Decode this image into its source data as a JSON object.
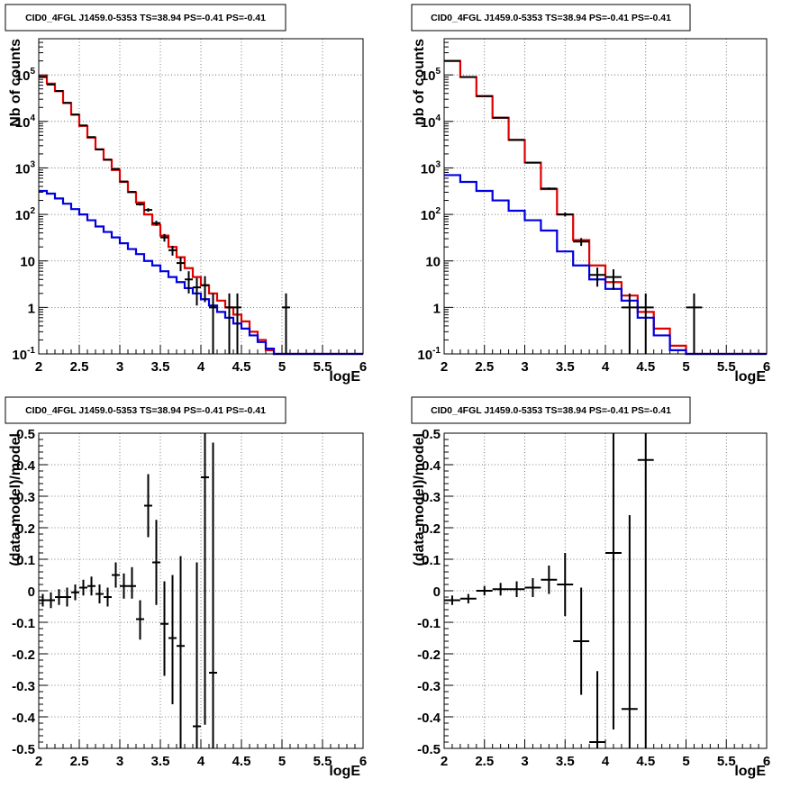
{
  "chart_data": [
    {
      "type": "line",
      "title": "CID0_4FGL J1459.0-5353 TS=38.94 PS=-0.41 PS=-0.41",
      "xlabel": "logE",
      "ylabel": "Nb of counts",
      "xlim": [
        2,
        6
      ],
      "ylim": [
        0.1,
        600000
      ],
      "yscale": "log",
      "grid": true,
      "x_ticks": [
        "2",
        "2.5",
        "3",
        "3.5",
        "4",
        "4.5",
        "5",
        "5.5",
        "6"
      ],
      "y_ticks": [
        "10^-1",
        "1",
        "10",
        "10^2",
        "10^3",
        "10^4",
        "10^5"
      ],
      "bin_edges": [
        2.0,
        2.1,
        2.2,
        2.3,
        2.4,
        2.5,
        2.6,
        2.7,
        2.8,
        2.9,
        3.0,
        3.1,
        3.2,
        3.3,
        3.4,
        3.5,
        3.6,
        3.7,
        3.8,
        3.9,
        4.0,
        4.1,
        4.2,
        4.3,
        4.4,
        4.5,
        4.6,
        4.7,
        4.8,
        4.9,
        5.0,
        5.1,
        5.2,
        5.3,
        5.4,
        5.5,
        5.6,
        5.7,
        5.8,
        5.9,
        6.0
      ],
      "series": [
        {
          "color": "#e00000",
          "style": "step",
          "values": [
            95000,
            65000,
            45000,
            25000,
            14000,
            8000,
            4500,
            2500,
            1500,
            900,
            500,
            300,
            180,
            100,
            60,
            35,
            20,
            12,
            7,
            4.5,
            3,
            2,
            1.4,
            1,
            0.7,
            0.5,
            0.3,
            0.2,
            0.12,
            0.1,
            0.1,
            0.1,
            0.1,
            0.1,
            0.1,
            0.1,
            0.1,
            0.1,
            0.1,
            0.1
          ]
        },
        {
          "color": "#0000e0",
          "style": "step",
          "values": [
            320,
            280,
            220,
            170,
            130,
            100,
            75,
            55,
            42,
            32,
            24,
            18,
            14,
            10,
            8,
            6,
            4.5,
            3.5,
            2.6,
            2,
            1.5,
            1.1,
            0.8,
            0.6,
            0.45,
            0.35,
            0.25,
            0.18,
            0.13,
            0.1,
            0.1,
            0.1,
            0.1,
            0.1,
            0.1,
            0.1,
            0.1,
            0.1,
            0.1,
            0.1
          ]
        }
      ],
      "data_points": [
        {
          "x": 2.05,
          "y": 90000,
          "ylo": 89400,
          "yhi": 90600
        },
        {
          "x": 2.15,
          "y": 62000,
          "ylo": 61500,
          "yhi": 62500
        },
        {
          "x": 2.25,
          "y": 45000,
          "ylo": 44500,
          "yhi": 45500
        },
        {
          "x": 2.35,
          "y": 25000,
          "ylo": 24700,
          "yhi": 25300
        },
        {
          "x": 2.45,
          "y": 14000,
          "ylo": 13800,
          "yhi": 14200
        },
        {
          "x": 2.55,
          "y": 8200,
          "ylo": 8050,
          "yhi": 8350
        },
        {
          "x": 2.65,
          "y": 4600,
          "ylo": 4500,
          "yhi": 4700
        },
        {
          "x": 2.75,
          "y": 2500,
          "ylo": 2450,
          "yhi": 2550
        },
        {
          "x": 2.85,
          "y": 1500,
          "ylo": 1460,
          "yhi": 1540
        },
        {
          "x": 2.95,
          "y": 950,
          "ylo": 920,
          "yhi": 980
        },
        {
          "x": 3.05,
          "y": 510,
          "ylo": 490,
          "yhi": 530
        },
        {
          "x": 3.15,
          "y": 305,
          "ylo": 290,
          "yhi": 320
        },
        {
          "x": 3.25,
          "y": 165,
          "ylo": 155,
          "yhi": 175
        },
        {
          "x": 3.35,
          "y": 125,
          "ylo": 114,
          "yhi": 136
        },
        {
          "x": 3.45,
          "y": 65,
          "ylo": 57,
          "yhi": 73
        },
        {
          "x": 3.55,
          "y": 32,
          "ylo": 26,
          "yhi": 38
        },
        {
          "x": 3.65,
          "y": 17,
          "ylo": 13,
          "yhi": 21
        },
        {
          "x": 3.75,
          "y": 9,
          "ylo": 6,
          "yhi": 12
        },
        {
          "x": 3.85,
          "y": 4,
          "ylo": 2,
          "yhi": 6
        },
        {
          "x": 3.95,
          "y": 2.7,
          "ylo": 1.1,
          "yhi": 4.3
        },
        {
          "x": 4.05,
          "y": 3,
          "ylo": 1.3,
          "yhi": 4.7
        },
        {
          "x": 4.15,
          "y": 1,
          "ylo": 0.1,
          "yhi": 2
        },
        {
          "x": 4.35,
          "y": 1,
          "ylo": 0.1,
          "yhi": 2
        },
        {
          "x": 4.45,
          "y": 1,
          "ylo": 0.1,
          "yhi": 2
        },
        {
          "x": 5.05,
          "y": 1,
          "ylo": 0.1,
          "yhi": 2
        }
      ]
    },
    {
      "type": "line",
      "title": "CID0_4FGL J1459.0-5353 TS=38.94 PS=-0.41 PS=-0.41",
      "xlabel": "logE",
      "ylabel": "nb of counts",
      "xlim": [
        2,
        6
      ],
      "ylim": [
        0.1,
        600000
      ],
      "yscale": "log",
      "grid": true,
      "x_ticks": [
        "2",
        "2.5",
        "3",
        "3.5",
        "4",
        "4.5",
        "5",
        "5.5",
        "6"
      ],
      "y_ticks": [
        "10^-1",
        "1",
        "10",
        "10^2",
        "10^3",
        "10^4",
        "10^5"
      ],
      "bin_edges": [
        2.0,
        2.2,
        2.4,
        2.6,
        2.8,
        3.0,
        3.2,
        3.4,
        3.6,
        3.8,
        4.0,
        4.2,
        4.4,
        4.6,
        4.8,
        5.0,
        5.2,
        5.4,
        5.6,
        5.8,
        6.0
      ],
      "series": [
        {
          "color": "#e00000",
          "style": "step",
          "values": [
            200000,
            90000,
            35000,
            12000,
            4000,
            1300,
            350,
            100,
            28,
            8,
            3.5,
            1.8,
            0.8,
            0.35,
            0.15,
            0.1,
            0.1,
            0.1,
            0.1,
            0.1
          ]
        },
        {
          "color": "#0000e0",
          "style": "step",
          "values": [
            700,
            500,
            320,
            200,
            120,
            75,
            45,
            16,
            8,
            4,
            2.5,
            1.4,
            0.6,
            0.25,
            0.12,
            0.1,
            0.1,
            0.1,
            0.1,
            0.1
          ]
        }
      ],
      "data_points": [
        {
          "x": 2.1,
          "y": 200000,
          "ylo": 199500,
          "yhi": 200500
        },
        {
          "x": 2.3,
          "y": 90000,
          "ylo": 89700,
          "yhi": 90300
        },
        {
          "x": 2.5,
          "y": 35000,
          "ylo": 34800,
          "yhi": 35200
        },
        {
          "x": 2.7,
          "y": 12000,
          "ylo": 11890,
          "yhi": 12110
        },
        {
          "x": 2.9,
          "y": 4000,
          "ylo": 3937,
          "yhi": 4063
        },
        {
          "x": 3.1,
          "y": 1300,
          "ylo": 1264,
          "yhi": 1336
        },
        {
          "x": 3.3,
          "y": 360,
          "ylo": 341,
          "yhi": 379
        },
        {
          "x": 3.5,
          "y": 100,
          "ylo": 90,
          "yhi": 110
        },
        {
          "x": 3.7,
          "y": 26,
          "ylo": 21,
          "yhi": 31
        },
        {
          "x": 3.9,
          "y": 5,
          "ylo": 2.8,
          "yhi": 7.2
        },
        {
          "x": 4.1,
          "y": 4.5,
          "ylo": 2.4,
          "yhi": 6.6
        },
        {
          "x": 4.3,
          "y": 1,
          "ylo": 0.1,
          "yhi": 2
        },
        {
          "x": 4.5,
          "y": 1,
          "ylo": 0.1,
          "yhi": 2
        },
        {
          "x": 5.1,
          "y": 1,
          "ylo": 0.1,
          "yhi": 2
        }
      ]
    },
    {
      "type": "scatter",
      "title": "CID0_4FGL J1459.0-5353 TS=38.94 PS=-0.41 PS=-0.41",
      "xlabel": "logE",
      "ylabel": "(data-model)/model",
      "xlim": [
        2,
        6
      ],
      "ylim": [
        -0.5,
        0.5
      ],
      "yscale": "linear",
      "grid": true,
      "x_ticks": [
        "2",
        "2.5",
        "3",
        "3.5",
        "4",
        "4.5",
        "5",
        "5.5",
        "6"
      ],
      "y_ticks": [
        "-0.5",
        "-0.4",
        "-0.3",
        "-0.2",
        "-0.1",
        "0",
        "0.1",
        "0.2",
        "0.3",
        "0.4",
        "0.5"
      ],
      "x_half_width": 0.05,
      "data_points": [
        {
          "x": 2.05,
          "y": -0.03,
          "ylo": -0.05,
          "yhi": -0.01
        },
        {
          "x": 2.15,
          "y": -0.03,
          "ylo": -0.055,
          "yhi": -0.005
        },
        {
          "x": 2.25,
          "y": -0.02,
          "ylo": -0.045,
          "yhi": 0.005
        },
        {
          "x": 2.35,
          "y": -0.02,
          "ylo": -0.05,
          "yhi": 0.01
        },
        {
          "x": 2.45,
          "y": -0.005,
          "ylo": -0.03,
          "yhi": 0.02
        },
        {
          "x": 2.55,
          "y": 0.01,
          "ylo": -0.015,
          "yhi": 0.035
        },
        {
          "x": 2.65,
          "y": 0.015,
          "ylo": -0.015,
          "yhi": 0.045
        },
        {
          "x": 2.75,
          "y": -0.01,
          "ylo": -0.04,
          "yhi": 0.02
        },
        {
          "x": 2.85,
          "y": -0.02,
          "ylo": -0.05,
          "yhi": 0.01
        },
        {
          "x": 2.95,
          "y": 0.05,
          "ylo": 0.01,
          "yhi": 0.09
        },
        {
          "x": 3.05,
          "y": 0.015,
          "ylo": -0.025,
          "yhi": 0.055
        },
        {
          "x": 3.15,
          "y": 0.015,
          "ylo": -0.025,
          "yhi": 0.075
        },
        {
          "x": 3.25,
          "y": -0.09,
          "ylo": -0.155,
          "yhi": -0.03
        },
        {
          "x": 3.35,
          "y": 0.27,
          "ylo": 0.17,
          "yhi": 0.37
        },
        {
          "x": 3.45,
          "y": 0.09,
          "ylo": -0.045,
          "yhi": 0.225
        },
        {
          "x": 3.55,
          "y": -0.105,
          "ylo": -0.27,
          "yhi": 0.03
        },
        {
          "x": 3.65,
          "y": -0.15,
          "ylo": -0.36,
          "yhi": 0.05
        },
        {
          "x": 3.75,
          "y": -0.175,
          "ylo": -0.5,
          "yhi": 0.11
        },
        {
          "x": 3.95,
          "y": -0.43,
          "ylo": -0.5,
          "yhi": 0.09
        },
        {
          "x": 4.05,
          "y": 0.36,
          "ylo": -0.425,
          "yhi": 0.5
        },
        {
          "x": 4.15,
          "y": -0.26,
          "ylo": -0.5,
          "yhi": 0.47
        }
      ]
    },
    {
      "type": "scatter",
      "title": "CID0_4FGL J1459.0-5353 TS=38.94 PS=-0.41 PS=-0.41",
      "xlabel": "logE",
      "ylabel": "(data-model)/model",
      "xlim": [
        2,
        6
      ],
      "ylim": [
        -0.5,
        0.5
      ],
      "yscale": "linear",
      "grid": true,
      "x_ticks": [
        "2",
        "2.5",
        "3",
        "3.5",
        "4",
        "4.5",
        "5",
        "5.5",
        "6"
      ],
      "y_ticks": [
        "-0.5",
        "-0.4",
        "-0.3",
        "-0.2",
        "-0.1",
        "0",
        "0.1",
        "0.2",
        "0.3",
        "0.4",
        "0.5"
      ],
      "x_half_width": 0.1,
      "data_points": [
        {
          "x": 2.1,
          "y": -0.03,
          "ylo": -0.045,
          "yhi": -0.015
        },
        {
          "x": 2.3,
          "y": -0.025,
          "ylo": -0.04,
          "yhi": -0.01
        },
        {
          "x": 2.5,
          "y": 0.0,
          "ylo": -0.015,
          "yhi": 0.015
        },
        {
          "x": 2.7,
          "y": 0.005,
          "ylo": -0.015,
          "yhi": 0.025
        },
        {
          "x": 2.9,
          "y": 0.005,
          "ylo": -0.02,
          "yhi": 0.03
        },
        {
          "x": 3.1,
          "y": 0.01,
          "ylo": -0.02,
          "yhi": 0.04
        },
        {
          "x": 3.3,
          "y": 0.035,
          "ylo": -0.01,
          "yhi": 0.08
        },
        {
          "x": 3.5,
          "y": 0.02,
          "ylo": -0.08,
          "yhi": 0.12
        },
        {
          "x": 3.7,
          "y": -0.16,
          "ylo": -0.33,
          "yhi": 0.01
        },
        {
          "x": 3.9,
          "y": -0.48,
          "ylo": -0.5,
          "yhi": -0.255
        },
        {
          "x": 4.1,
          "y": 0.12,
          "ylo": -0.44,
          "yhi": 0.5
        },
        {
          "x": 4.3,
          "y": -0.375,
          "ylo": -0.5,
          "yhi": 0.24
        },
        {
          "x": 4.5,
          "y": 0.415,
          "ylo": -0.5,
          "yhi": 0.5
        }
      ]
    }
  ]
}
